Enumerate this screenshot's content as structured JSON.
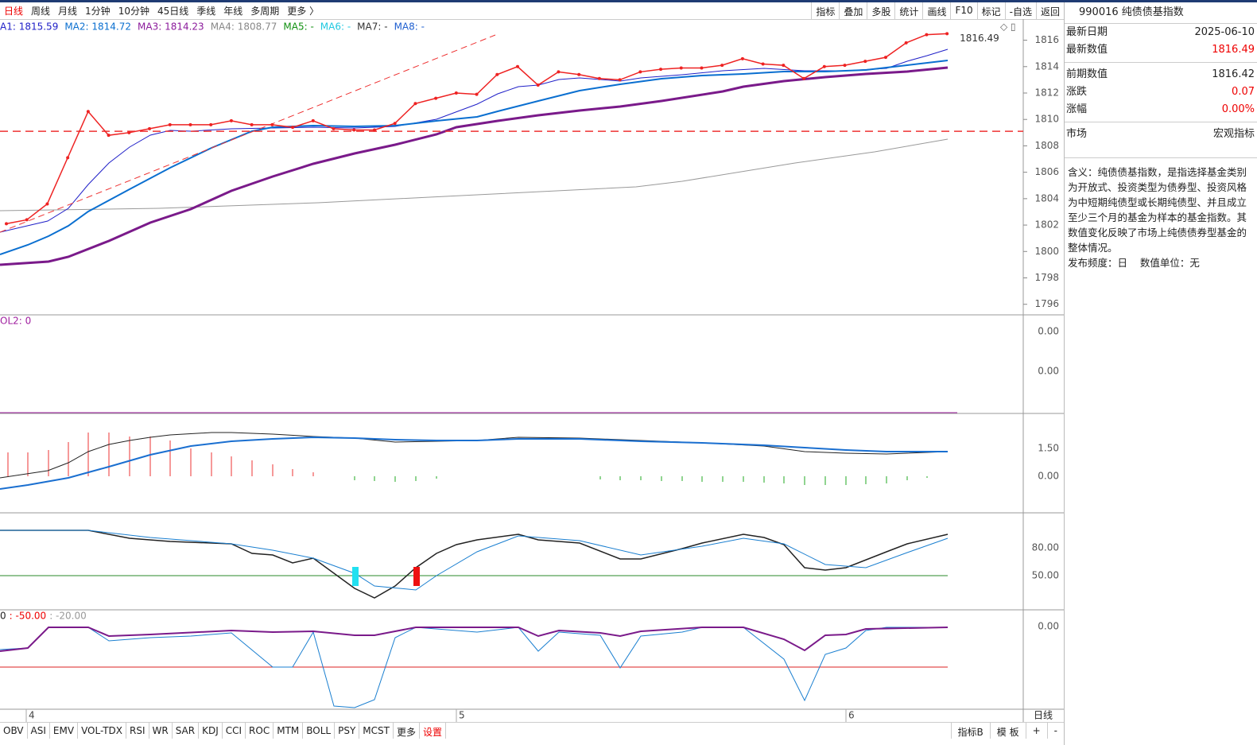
{
  "toolbar": {
    "left": [
      "日线",
      "周线",
      "月线",
      "1分钟",
      "10分钟",
      "45日线",
      "季线",
      "年线",
      "多周期",
      "更多 〉"
    ],
    "right": [
      "指标",
      "叠加",
      "多股",
      "统计",
      "画线",
      "F10",
      "标记",
      "-自选",
      "返回"
    ]
  },
  "chart_data": {
    "type": "line",
    "legend": [
      {
        "label": "A1: 1815.59",
        "color": "#2020c8"
      },
      {
        "label": "MA2: 1814.72",
        "color": "#0a6fd0"
      },
      {
        "label": "MA3: 1814.23",
        "color": "#8b1a9b"
      },
      {
        "label": "MA4: 1808.77",
        "color": "#888888"
      },
      {
        "label": "MA5: -",
        "color": "#109010"
      },
      {
        "label": "MA6: -",
        "color": "#20c8e0"
      },
      {
        "label": "MA7: -",
        "color": "#333333"
      },
      {
        "label": "MA8: -",
        "color": "#2060d0"
      }
    ],
    "series": [
      {
        "color": "#ee2222",
        "values": [
          1802.1,
          1802.4,
          1803.6,
          1807.1,
          1810.6,
          1808.8,
          1809.0,
          1809.3,
          1809.6,
          1809.6,
          1809.6,
          1809.9,
          1809.6,
          1809.6,
          1809.4,
          1809.9,
          1809.3,
          1809.2,
          1809.2,
          1809.7,
          1811.2,
          1811.6,
          1812.0,
          1811.9,
          1813.4,
          1814.0,
          1812.6,
          1813.6,
          1813.4,
          1813.1,
          1813.0,
          1813.6,
          1813.8,
          1813.9,
          1813.9,
          1814.1,
          1814.6,
          1814.2,
          1814.1,
          1813.1,
          1814.0,
          1814.1,
          1814.4,
          1814.7,
          1815.8,
          1816.42,
          1816.49
        ]
      }
    ],
    "last_label": "1816.49",
    "hline": 1809.1,
    "ylim": [
      1795.2,
      1817.6
    ],
    "yticks": [
      1796,
      1798,
      1800,
      1802,
      1804,
      1806,
      1808,
      1810,
      1812,
      1814,
      1816
    ],
    "xlabels": [
      "4",
      "5",
      "6"
    ],
    "period": "日线"
  },
  "subpanels": [
    {
      "legend": [
        "OL2: 0"
      ],
      "axis": [
        "0.00",
        "0.00"
      ]
    },
    {
      "legend": [],
      "axis": [
        "1.50",
        "0.00"
      ]
    },
    {
      "legend": [],
      "axis": [
        "80.00",
        "50.00"
      ]
    },
    {
      "legend": [
        "0",
        ": -50.00",
        ": -20.00"
      ],
      "axis": [
        "0.00"
      ]
    }
  ],
  "tabs": {
    "left": [
      "OBV",
      "ASI",
      "EMV",
      "VOL-TDX",
      "RSI",
      "WR",
      "SAR",
      "KDJ",
      "CCI",
      "ROC",
      "MTM",
      "BOLL",
      "PSY",
      "MCST",
      "更多",
      "设置"
    ],
    "right": [
      "指标B",
      "模 板",
      "+",
      "-"
    ]
  },
  "info": {
    "title": "990016 纯债债基指数",
    "rows": [
      [
        "最新日期",
        "2025-06-10"
      ],
      [
        "最新数值",
        "1816.49"
      ],
      [
        "前期数值",
        "1816.42"
      ],
      [
        "涨跌",
        "0.07"
      ],
      [
        "涨幅",
        "0.00%"
      ],
      [
        "市场",
        "宏观指标"
      ]
    ],
    "description": "含义：纯债债基指数，是指选择基金类别为开放式、投资类型为债券型、投资风格为中短期纯债型或长期纯债型、并且成立至少三个月的基金为样本的基金指数。其数值变化反映了市场上纯债债券型基金的整体情况。",
    "frequency": "发布频度：日",
    "unit": "数值单位：无"
  }
}
